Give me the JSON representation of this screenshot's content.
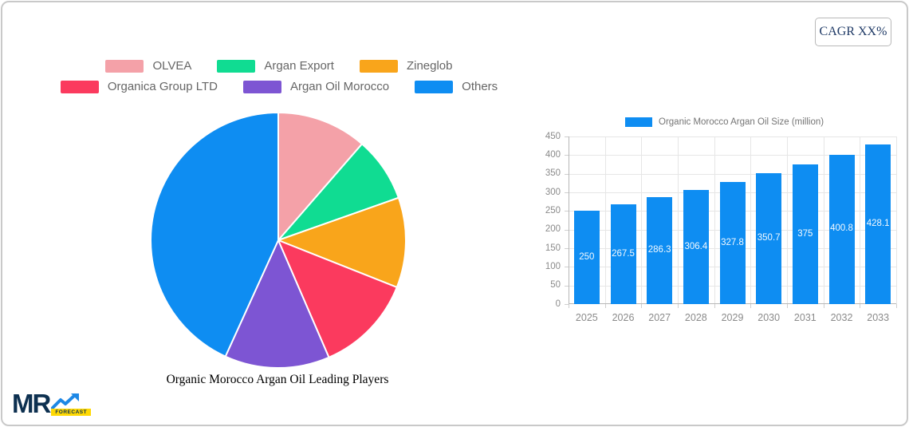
{
  "cagr_badge": {
    "label": "CAGR XX%"
  },
  "logo": {
    "text": "MR",
    "badge": "FORECAST"
  },
  "pie": {
    "title": "Organic Morocco Argan Oil Leading Players",
    "legend_rows": [
      [
        0,
        1,
        2
      ],
      [
        3,
        4,
        5
      ]
    ]
  },
  "bar": {
    "legend_label": "Organic Morocco Argan Oil Size (million)"
  },
  "colors": {
    "bar_blue": "#0e8df2",
    "grid": "#e6e6e6",
    "axis_text": "#8a8a8a",
    "legend_text": "#666666",
    "cagr_text": "#1f3a66",
    "logo_navy": "#0d3050",
    "logo_blue": "#1e88e5",
    "logo_yellow": "#ffd903"
  },
  "chart_data": [
    {
      "type": "pie",
      "title": "Organic Morocco Argan Oil Leading Players",
      "labels": [
        "OLVEA",
        "Argan Export",
        "Zineglob",
        "Organica Group LTD",
        "Argan Oil Morocco",
        "Others"
      ],
      "values": [
        11.4,
        8.2,
        11.4,
        12.5,
        13.3,
        43.2
      ],
      "colors": [
        "#f4a1a8",
        "#10dc92",
        "#f9a51b",
        "#fb3a5e",
        "#7d55d3",
        "#0e8df2"
      ],
      "legend_position": "top",
      "start_angle_deg": -90,
      "direction": "clockwise"
    },
    {
      "type": "bar",
      "legend_label": "Organic Morocco Argan Oil Size (million)",
      "categories": [
        "2025",
        "2026",
        "2027",
        "2028",
        "2029",
        "2030",
        "2031",
        "2032",
        "2033"
      ],
      "values": [
        250,
        267.5,
        286.3,
        306.4,
        327.8,
        350.7,
        375,
        400.8,
        428.1
      ],
      "bar_color": "#0e8df2",
      "xlabel": "",
      "ylabel": "",
      "ylim": [
        0,
        450
      ],
      "ytick_step": 50,
      "grid": true,
      "value_labels": "inside-middle"
    }
  ]
}
